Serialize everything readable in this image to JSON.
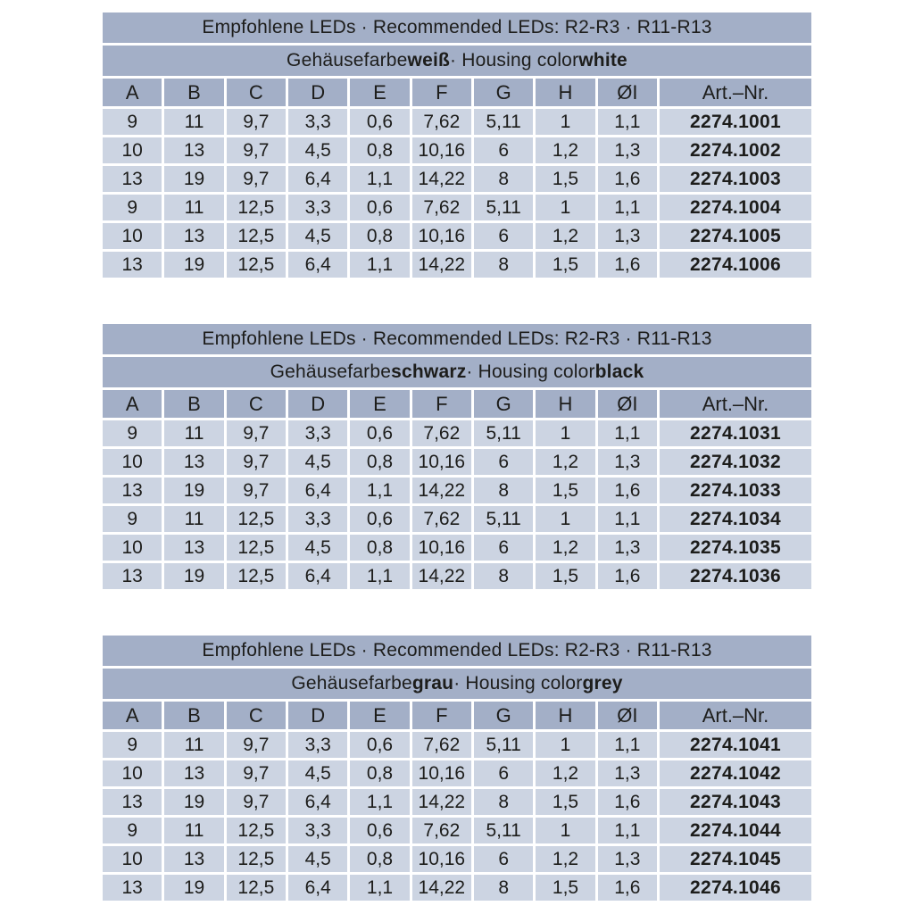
{
  "colors": {
    "band": "#a3afc7",
    "cell": "#ccd4e2",
    "text": "#1d1d1b",
    "page_background": "#ffffff"
  },
  "tables": [
    {
      "title": "Empfohlene LEDs · Recommended LEDs: R2-R3 · R11-R13",
      "subtitle": {
        "prefix": "Gehäusefarbe",
        "color_de": "weiß",
        "middle": "· Housing color",
        "color_en": "white"
      },
      "columns": [
        "A",
        "B",
        "C",
        "D",
        "E",
        "F",
        "G",
        "H",
        "ØI",
        "Art.–Nr."
      ],
      "rows": [
        [
          "9",
          "11",
          "9,7",
          "3,3",
          "0,6",
          "7,62",
          "5,11",
          "1",
          "1,1",
          "2274.1001"
        ],
        [
          "10",
          "13",
          "9,7",
          "4,5",
          "0,8",
          "10,16",
          "6",
          "1,2",
          "1,3",
          "2274.1002"
        ],
        [
          "13",
          "19",
          "9,7",
          "6,4",
          "1,1",
          "14,22",
          "8",
          "1,5",
          "1,6",
          "2274.1003"
        ],
        [
          "9",
          "11",
          "12,5",
          "3,3",
          "0,6",
          "7,62",
          "5,11",
          "1",
          "1,1",
          "2274.1004"
        ],
        [
          "10",
          "13",
          "12,5",
          "4,5",
          "0,8",
          "10,16",
          "6",
          "1,2",
          "1,3",
          "2274.1005"
        ],
        [
          "13",
          "19",
          "12,5",
          "6,4",
          "1,1",
          "14,22",
          "8",
          "1,5",
          "1,6",
          "2274.1006"
        ]
      ]
    },
    {
      "title": "Empfohlene LEDs · Recommended LEDs: R2-R3 · R11-R13",
      "subtitle": {
        "prefix": "Gehäusefarbe",
        "color_de": "schwarz",
        "middle": "· Housing color",
        "color_en": "black"
      },
      "columns": [
        "A",
        "B",
        "C",
        "D",
        "E",
        "F",
        "G",
        "H",
        "ØI",
        "Art.–Nr."
      ],
      "rows": [
        [
          "9",
          "11",
          "9,7",
          "3,3",
          "0,6",
          "7,62",
          "5,11",
          "1",
          "1,1",
          "2274.1031"
        ],
        [
          "10",
          "13",
          "9,7",
          "4,5",
          "0,8",
          "10,16",
          "6",
          "1,2",
          "1,3",
          "2274.1032"
        ],
        [
          "13",
          "19",
          "9,7",
          "6,4",
          "1,1",
          "14,22",
          "8",
          "1,5",
          "1,6",
          "2274.1033"
        ],
        [
          "9",
          "11",
          "12,5",
          "3,3",
          "0,6",
          "7,62",
          "5,11",
          "1",
          "1,1",
          "2274.1034"
        ],
        [
          "10",
          "13",
          "12,5",
          "4,5",
          "0,8",
          "10,16",
          "6",
          "1,2",
          "1,3",
          "2274.1035"
        ],
        [
          "13",
          "19",
          "12,5",
          "6,4",
          "1,1",
          "14,22",
          "8",
          "1,5",
          "1,6",
          "2274.1036"
        ]
      ]
    },
    {
      "title": "Empfohlene LEDs · Recommended LEDs: R2-R3 · R11-R13",
      "subtitle": {
        "prefix": "Gehäusefarbe",
        "color_de": "grau",
        "middle": "· Housing color",
        "color_en": "grey"
      },
      "columns": [
        "A",
        "B",
        "C",
        "D",
        "E",
        "F",
        "G",
        "H",
        "ØI",
        "Art.–Nr."
      ],
      "rows": [
        [
          "9",
          "11",
          "9,7",
          "3,3",
          "0,6",
          "7,62",
          "5,11",
          "1",
          "1,1",
          "2274.1041"
        ],
        [
          "10",
          "13",
          "9,7",
          "4,5",
          "0,8",
          "10,16",
          "6",
          "1,2",
          "1,3",
          "2274.1042"
        ],
        [
          "13",
          "19",
          "9,7",
          "6,4",
          "1,1",
          "14,22",
          "8",
          "1,5",
          "1,6",
          "2274.1043"
        ],
        [
          "9",
          "11",
          "12,5",
          "3,3",
          "0,6",
          "7,62",
          "5,11",
          "1",
          "1,1",
          "2274.1044"
        ],
        [
          "10",
          "13",
          "12,5",
          "4,5",
          "0,8",
          "10,16",
          "6",
          "1,2",
          "1,3",
          "2274.1045"
        ],
        [
          "13",
          "19",
          "12,5",
          "6,4",
          "1,1",
          "14,22",
          "8",
          "1,5",
          "1,6",
          "2274.1046"
        ]
      ]
    }
  ]
}
